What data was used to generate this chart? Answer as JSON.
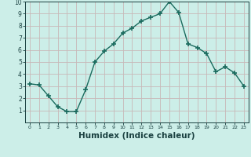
{
  "x": [
    0,
    1,
    2,
    3,
    4,
    5,
    6,
    7,
    8,
    9,
    10,
    11,
    12,
    13,
    14,
    15,
    16,
    17,
    18,
    19,
    20,
    21,
    22,
    23
  ],
  "y": [
    3.2,
    3.1,
    2.2,
    1.3,
    0.9,
    0.9,
    2.7,
    5.0,
    5.9,
    6.5,
    7.4,
    7.8,
    8.4,
    8.7,
    9.0,
    10.0,
    9.1,
    6.5,
    6.2,
    5.7,
    4.2,
    4.6,
    4.1,
    3.0
  ],
  "line_color": "#1a6b5e",
  "marker": "+",
  "marker_size": 4,
  "line_width": 1.0,
  "bg_color": "#cceee8",
  "grid_color": "#c8b8b8",
  "xlabel": "Humidex (Indice chaleur)",
  "xlabel_fontsize": 7.5,
  "xlabel_color": "#1a4040",
  "tick_color": "#1a4040",
  "ylim": [
    0,
    10
  ],
  "xlim": [
    -0.5,
    23.5
  ],
  "yticks": [
    1,
    2,
    3,
    4,
    5,
    6,
    7,
    8,
    9,
    10
  ],
  "xticks": [
    0,
    1,
    2,
    3,
    4,
    5,
    6,
    7,
    8,
    9,
    10,
    11,
    12,
    13,
    14,
    15,
    16,
    17,
    18,
    19,
    20,
    21,
    22,
    23
  ]
}
